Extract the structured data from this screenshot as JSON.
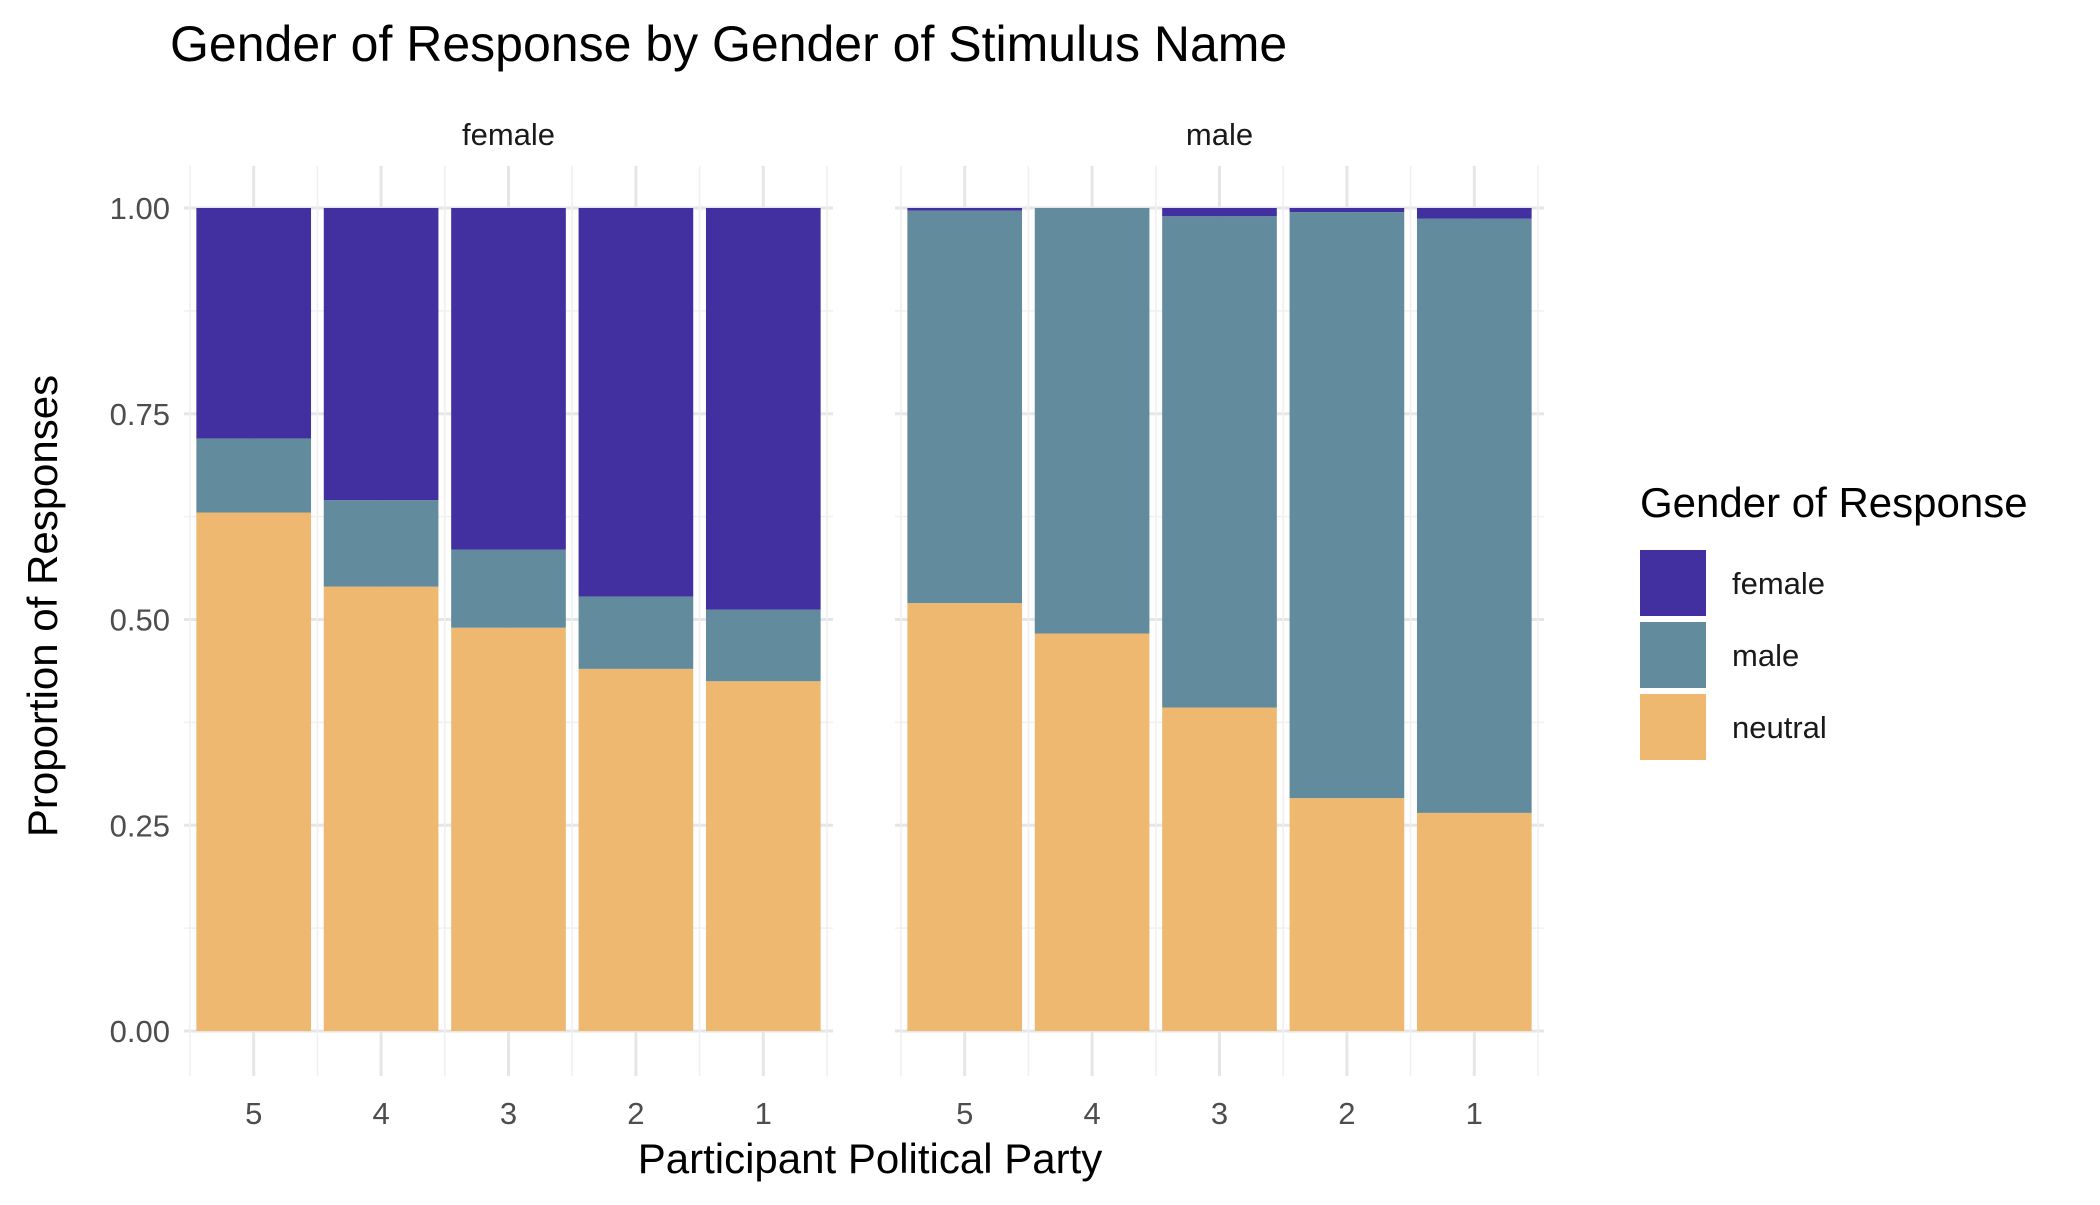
{
  "chart_data": {
    "type": "bar",
    "stacked": true,
    "title": "Gender of Response by Gender of Stimulus Name",
    "xlabel": "Participant Political Party",
    "ylabel": "Proportion of Responses",
    "ylim": [
      0,
      1
    ],
    "y_ticks": [
      "0.00",
      "0.25",
      "0.50",
      "0.75",
      "1.00"
    ],
    "y_tick_values": [
      0,
      0.25,
      0.5,
      0.75,
      1.0
    ],
    "categories": [
      "5",
      "4",
      "3",
      "2",
      "1"
    ],
    "grid": true,
    "legend": {
      "title": "Gender of Response",
      "position": "right",
      "entries": [
        {
          "name": "female",
          "color": "#4230a0"
        },
        {
          "name": "male",
          "color": "#628c9e"
        },
        {
          "name": "neutral",
          "color": "#eeb870"
        }
      ]
    },
    "facets": [
      {
        "label": "female",
        "series": [
          {
            "name": "neutral",
            "values": [
              0.63,
              0.54,
              0.49,
              0.44,
              0.425
            ]
          },
          {
            "name": "male",
            "values": [
              0.09,
              0.105,
              0.095,
              0.088,
              0.087
            ]
          },
          {
            "name": "female",
            "values": [
              0.28,
              0.355,
              0.415,
              0.472,
              0.488
            ]
          }
        ]
      },
      {
        "label": "male",
        "series": [
          {
            "name": "neutral",
            "values": [
              0.52,
              0.483,
              0.393,
              0.283,
              0.265
            ]
          },
          {
            "name": "male",
            "values": [
              0.477,
              0.517,
              0.597,
              0.712,
              0.722
            ]
          },
          {
            "name": "female",
            "values": [
              0.003,
              0.0,
              0.01,
              0.005,
              0.013
            ]
          }
        ]
      }
    ]
  }
}
